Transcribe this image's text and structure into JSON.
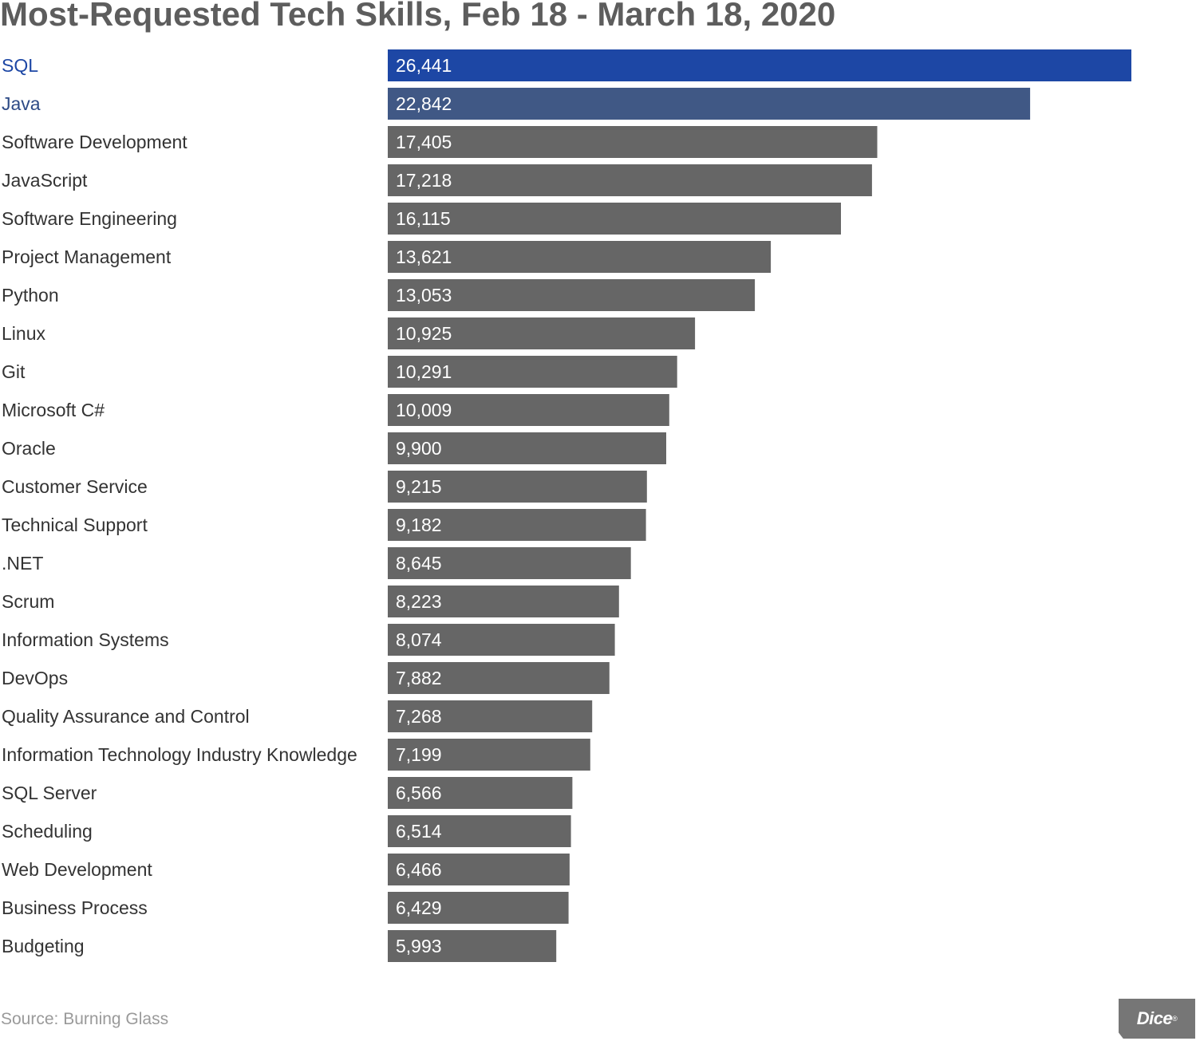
{
  "chart_data": {
    "type": "bar",
    "orientation": "horizontal",
    "title": "Most-Requested Tech Skills, Feb 18 - March 18, 2020",
    "xlabel": "",
    "ylabel": "",
    "xlim": [
      0,
      28000
    ],
    "categories": [
      "SQL",
      "Java",
      "Software Development",
      "JavaScript",
      "Software Engineering",
      "Project Management",
      "Python",
      "Linux",
      "Git",
      "Microsoft C#",
      "Oracle",
      "Customer Service",
      "Technical Support",
      ".NET",
      "Scrum",
      "Information Systems",
      "DevOps",
      "Quality Assurance and Control",
      "Information Technology Industry Knowledge",
      "SQL Server",
      "Scheduling",
      "Web Development",
      "Business Process",
      "Budgeting"
    ],
    "values": [
      26441,
      22842,
      17405,
      17218,
      16115,
      13621,
      13053,
      10925,
      10291,
      10009,
      9900,
      9215,
      9182,
      8645,
      8223,
      8074,
      7882,
      7268,
      7199,
      6566,
      6514,
      6466,
      6429,
      5993
    ],
    "value_labels": [
      "26,441",
      "22,842",
      "17,405",
      "17,218",
      "16,115",
      "13,621",
      "13,053",
      "10,925",
      "10,291",
      "10,009",
      "9,900",
      "9,215",
      "9,182",
      "8,645",
      "8,223",
      "8,074",
      "7,882",
      "7,268",
      "7,199",
      "6,566",
      "6,514",
      "6,466",
      "6,429",
      "5,993"
    ],
    "highlight_bar_colors": [
      "#1d47a5",
      "#405885"
    ],
    "highlight_label_colors": [
      "#1d47a5",
      "#2d4a86"
    ],
    "default_bar_color": "#666666",
    "default_label_color": "#333333"
  },
  "source": "Source: Burning Glass",
  "logo": {
    "text": "Dice",
    "mark": "®"
  }
}
